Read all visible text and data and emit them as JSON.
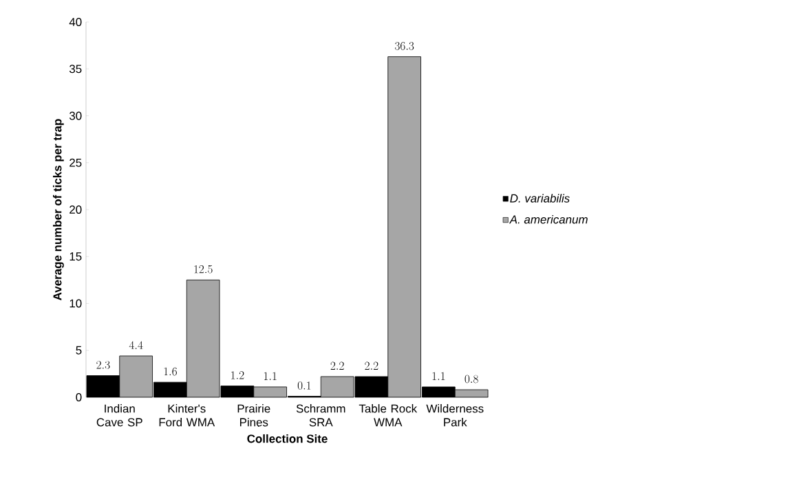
{
  "chart_data": {
    "type": "bar",
    "xlabel": "Collection Site",
    "ylabel": "Average number of ticks per trap",
    "categories": [
      "Indian Cave SP",
      "Kinter's Ford WMA",
      "Prairie Pines",
      "Schramm SRA",
      "Table Rock WMA",
      "Wilderness Park"
    ],
    "series": [
      {
        "name": "D. variabilis",
        "color": "#000000",
        "values": [
          2.3,
          1.6,
          1.2,
          0.1,
          2.2,
          1.1
        ]
      },
      {
        "name": "A. americanum",
        "color": "#a6a6a6",
        "values": [
          4.4,
          12.5,
          1.1,
          2.2,
          36.3,
          0.8
        ]
      }
    ],
    "ylim": [
      0,
      40
    ],
    "yticks": [
      0,
      5,
      10,
      15,
      20,
      25,
      30,
      35,
      40
    ],
    "data_labels": true,
    "legend": "right",
    "grid": false
  }
}
